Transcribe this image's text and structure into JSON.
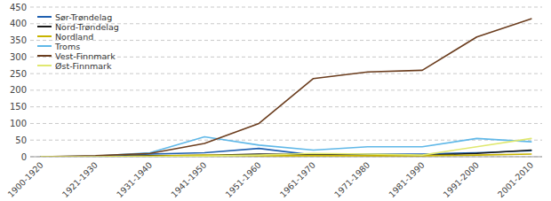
{
  "chart_data": {
    "type": "line",
    "categories": [
      "1900-1920",
      "1921-1930",
      "1931-1940",
      "1941-1950",
      "1951-1960",
      "1961-1970",
      "1971-1980",
      "1981-1990",
      "1991-2000",
      "2001-2010"
    ],
    "series": [
      {
        "name": "Sør-Trøndelag",
        "color": "#2060b0",
        "values": [
          0,
          1,
          8,
          12,
          25,
          5,
          8,
          8,
          12,
          18
        ]
      },
      {
        "name": "Nord-Trøndelag",
        "color": "#1a1a1a",
        "values": [
          0,
          0,
          3,
          4,
          8,
          7,
          4,
          4,
          10,
          20
        ]
      },
      {
        "name": "Nordland",
        "color": "#c8b400",
        "values": [
          0,
          0,
          2,
          5,
          3,
          3,
          3,
          3,
          5,
          8
        ]
      },
      {
        "name": "Troms",
        "color": "#60b8e8",
        "values": [
          0,
          2,
          12,
          60,
          35,
          20,
          30,
          30,
          55,
          45
        ]
      },
      {
        "name": "Vest-Finnmark",
        "color": "#6b3d1e",
        "values": [
          0,
          3,
          10,
          40,
          100,
          235,
          255,
          260,
          360,
          415
        ]
      },
      {
        "name": "Øst-Finnmark",
        "color": "#e0e870",
        "values": [
          0,
          0,
          0,
          2,
          5,
          10,
          8,
          5,
          30,
          55
        ]
      }
    ],
    "ylim": [
      0,
      450
    ],
    "yticks": [
      0,
      50,
      100,
      150,
      200,
      250,
      300,
      350,
      400,
      450
    ],
    "grid": true,
    "legend": "upper left"
  }
}
